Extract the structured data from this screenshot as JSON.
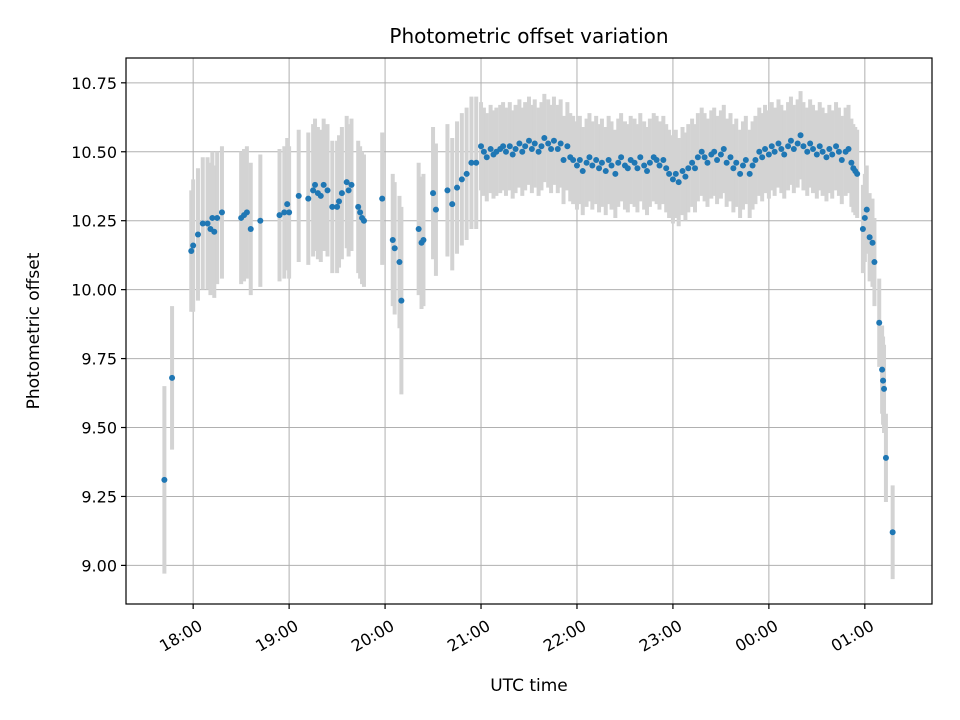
{
  "chart_data": {
    "type": "scatter",
    "title": "Photometric offset variation",
    "xlabel": "UTC time",
    "ylabel": "Photometric offset",
    "grid": true,
    "x_unit": "hours (UTC, beyond 24 = next day)",
    "xlim": [
      17.3,
      25.7
    ],
    "ylim": [
      8.86,
      10.84
    ],
    "x_ticks": [
      {
        "value": 18,
        "label": "18:00"
      },
      {
        "value": 19,
        "label": "19:00"
      },
      {
        "value": 20,
        "label": "20:00"
      },
      {
        "value": 21,
        "label": "21:00"
      },
      {
        "value": 22,
        "label": "22:00"
      },
      {
        "value": 23,
        "label": "23:00"
      },
      {
        "value": 24,
        "label": "00:00"
      },
      {
        "value": 25,
        "label": "01:00"
      }
    ],
    "y_ticks": [
      {
        "value": 9.0,
        "label": "9.00"
      },
      {
        "value": 9.25,
        "label": "9.25"
      },
      {
        "value": 9.5,
        "label": "9.50"
      },
      {
        "value": 9.75,
        "label": "9.75"
      },
      {
        "value": 10.0,
        "label": "10.00"
      },
      {
        "value": 10.25,
        "label": "10.25"
      },
      {
        "value": 10.5,
        "label": "10.50"
      },
      {
        "value": 10.75,
        "label": "10.75"
      }
    ],
    "colors": {
      "points": "#1f77b4",
      "errorbars": "#d3d3d3"
    },
    "series": [
      {
        "points": [
          [
            17.7,
            9.31,
            0.34
          ],
          [
            17.78,
            9.68,
            0.26
          ],
          [
            17.98,
            10.14,
            0.22
          ],
          [
            18.0,
            10.16,
            0.24
          ],
          [
            18.05,
            10.2,
            0.24
          ],
          [
            18.1,
            10.24,
            0.24
          ],
          [
            18.15,
            10.24,
            0.24
          ],
          [
            18.18,
            10.22,
            0.24
          ],
          [
            18.2,
            10.26,
            0.24
          ],
          [
            18.22,
            10.21,
            0.24
          ],
          [
            18.25,
            10.26,
            0.24
          ],
          [
            18.3,
            10.28,
            0.24
          ],
          [
            18.5,
            10.26,
            0.24
          ],
          [
            18.53,
            10.27,
            0.24
          ],
          [
            18.56,
            10.28,
            0.24
          ],
          [
            18.6,
            10.22,
            0.24
          ],
          [
            18.7,
            10.25,
            0.24
          ],
          [
            18.9,
            10.27,
            0.24
          ],
          [
            18.95,
            10.28,
            0.24
          ],
          [
            18.98,
            10.31,
            0.24
          ],
          [
            19.0,
            10.28,
            0.24
          ],
          [
            19.1,
            10.34,
            0.24
          ],
          [
            19.2,
            10.33,
            0.24
          ],
          [
            19.25,
            10.36,
            0.24
          ],
          [
            19.27,
            10.38,
            0.24
          ],
          [
            19.3,
            10.35,
            0.24
          ],
          [
            19.33,
            10.34,
            0.24
          ],
          [
            19.36,
            10.38,
            0.24
          ],
          [
            19.4,
            10.36,
            0.24
          ],
          [
            19.45,
            10.3,
            0.24
          ],
          [
            19.5,
            10.3,
            0.24
          ],
          [
            19.52,
            10.32,
            0.24
          ],
          [
            19.55,
            10.35,
            0.24
          ],
          [
            19.6,
            10.39,
            0.24
          ],
          [
            19.62,
            10.36,
            0.24
          ],
          [
            19.65,
            10.38,
            0.24
          ],
          [
            19.72,
            10.3,
            0.24
          ],
          [
            19.74,
            10.28,
            0.24
          ],
          [
            19.76,
            10.26,
            0.24
          ],
          [
            19.78,
            10.25,
            0.24
          ],
          [
            19.97,
            10.33,
            0.24
          ],
          [
            20.08,
            10.18,
            0.24
          ],
          [
            20.1,
            10.15,
            0.24
          ],
          [
            20.15,
            10.1,
            0.24
          ],
          [
            20.17,
            9.96,
            0.34
          ],
          [
            20.35,
            10.22,
            0.24
          ],
          [
            20.38,
            10.17,
            0.24
          ],
          [
            20.4,
            10.18,
            0.24
          ],
          [
            20.5,
            10.35,
            0.24
          ],
          [
            20.53,
            10.29,
            0.24
          ],
          [
            20.65,
            10.36,
            0.24
          ],
          [
            20.7,
            10.31,
            0.24
          ],
          [
            20.75,
            10.37,
            0.24
          ],
          [
            20.8,
            10.4,
            0.24
          ],
          [
            20.85,
            10.42,
            0.24
          ],
          [
            20.9,
            10.46,
            0.24
          ],
          [
            20.95,
            10.46,
            0.24
          ],
          [
            21.0,
            10.52,
            0.16
          ],
          [
            21.03,
            10.5,
            0.16
          ],
          [
            21.06,
            10.48,
            0.16
          ],
          [
            21.1,
            10.51,
            0.16
          ],
          [
            21.13,
            10.49,
            0.16
          ],
          [
            21.16,
            10.5,
            0.16
          ],
          [
            21.2,
            10.51,
            0.16
          ],
          [
            21.23,
            10.52,
            0.16
          ],
          [
            21.26,
            10.5,
            0.16
          ],
          [
            21.3,
            10.52,
            0.16
          ],
          [
            21.33,
            10.49,
            0.16
          ],
          [
            21.36,
            10.51,
            0.16
          ],
          [
            21.4,
            10.53,
            0.16
          ],
          [
            21.43,
            10.5,
            0.16
          ],
          [
            21.46,
            10.52,
            0.16
          ],
          [
            21.5,
            10.54,
            0.16
          ],
          [
            21.53,
            10.51,
            0.16
          ],
          [
            21.56,
            10.53,
            0.16
          ],
          [
            21.6,
            10.5,
            0.16
          ],
          [
            21.63,
            10.52,
            0.16
          ],
          [
            21.66,
            10.55,
            0.16
          ],
          [
            21.7,
            10.53,
            0.16
          ],
          [
            21.73,
            10.51,
            0.16
          ],
          [
            21.76,
            10.54,
            0.16
          ],
          [
            21.8,
            10.51,
            0.16
          ],
          [
            21.83,
            10.53,
            0.16
          ],
          [
            21.86,
            10.47,
            0.16
          ],
          [
            21.9,
            10.52,
            0.16
          ],
          [
            21.93,
            10.48,
            0.16
          ],
          [
            21.96,
            10.47,
            0.16
          ],
          [
            22.0,
            10.45,
            0.16
          ],
          [
            22.03,
            10.47,
            0.16
          ],
          [
            22.06,
            10.43,
            0.16
          ],
          [
            22.1,
            10.46,
            0.16
          ],
          [
            22.13,
            10.48,
            0.16
          ],
          [
            22.16,
            10.45,
            0.16
          ],
          [
            22.2,
            10.47,
            0.16
          ],
          [
            22.23,
            10.44,
            0.16
          ],
          [
            22.26,
            10.46,
            0.16
          ],
          [
            22.3,
            10.43,
            0.16
          ],
          [
            22.33,
            10.47,
            0.16
          ],
          [
            22.36,
            10.45,
            0.16
          ],
          [
            22.4,
            10.42,
            0.16
          ],
          [
            22.43,
            10.46,
            0.16
          ],
          [
            22.46,
            10.48,
            0.16
          ],
          [
            22.5,
            10.45,
            0.16
          ],
          [
            22.53,
            10.44,
            0.16
          ],
          [
            22.56,
            10.47,
            0.16
          ],
          [
            22.6,
            10.46,
            0.16
          ],
          [
            22.63,
            10.44,
            0.16
          ],
          [
            22.66,
            10.48,
            0.16
          ],
          [
            22.7,
            10.45,
            0.16
          ],
          [
            22.73,
            10.43,
            0.16
          ],
          [
            22.76,
            10.46,
            0.16
          ],
          [
            22.8,
            10.48,
            0.16
          ],
          [
            22.83,
            10.47,
            0.16
          ],
          [
            22.86,
            10.45,
            0.16
          ],
          [
            22.9,
            10.47,
            0.16
          ],
          [
            22.93,
            10.44,
            0.16
          ],
          [
            22.96,
            10.42,
            0.16
          ],
          [
            23.0,
            10.4,
            0.16
          ],
          [
            23.03,
            10.42,
            0.16
          ],
          [
            23.06,
            10.39,
            0.16
          ],
          [
            23.1,
            10.43,
            0.16
          ],
          [
            23.13,
            10.41,
            0.16
          ],
          [
            23.16,
            10.44,
            0.16
          ],
          [
            23.2,
            10.46,
            0.16
          ],
          [
            23.23,
            10.44,
            0.16
          ],
          [
            23.26,
            10.48,
            0.16
          ],
          [
            23.3,
            10.5,
            0.16
          ],
          [
            23.33,
            10.48,
            0.16
          ],
          [
            23.36,
            10.46,
            0.16
          ],
          [
            23.4,
            10.49,
            0.16
          ],
          [
            23.43,
            10.5,
            0.16
          ],
          [
            23.46,
            10.47,
            0.16
          ],
          [
            23.5,
            10.49,
            0.16
          ],
          [
            23.53,
            10.51,
            0.16
          ],
          [
            23.56,
            10.46,
            0.16
          ],
          [
            23.6,
            10.48,
            0.16
          ],
          [
            23.63,
            10.44,
            0.16
          ],
          [
            23.66,
            10.46,
            0.16
          ],
          [
            23.7,
            10.42,
            0.16
          ],
          [
            23.73,
            10.45,
            0.16
          ],
          [
            23.76,
            10.47,
            0.16
          ],
          [
            23.8,
            10.42,
            0.16
          ],
          [
            23.83,
            10.45,
            0.16
          ],
          [
            23.86,
            10.47,
            0.16
          ],
          [
            23.9,
            10.5,
            0.16
          ],
          [
            23.93,
            10.48,
            0.16
          ],
          [
            23.96,
            10.51,
            0.16
          ],
          [
            24.0,
            10.49,
            0.16
          ],
          [
            24.03,
            10.52,
            0.16
          ],
          [
            24.06,
            10.5,
            0.16
          ],
          [
            24.1,
            10.53,
            0.16
          ],
          [
            24.13,
            10.51,
            0.16
          ],
          [
            24.16,
            10.49,
            0.16
          ],
          [
            24.2,
            10.52,
            0.16
          ],
          [
            24.23,
            10.54,
            0.16
          ],
          [
            24.26,
            10.51,
            0.16
          ],
          [
            24.3,
            10.53,
            0.16
          ],
          [
            24.33,
            10.56,
            0.16
          ],
          [
            24.36,
            10.52,
            0.16
          ],
          [
            24.4,
            10.5,
            0.16
          ],
          [
            24.43,
            10.53,
            0.16
          ],
          [
            24.46,
            10.51,
            0.16
          ],
          [
            24.5,
            10.49,
            0.16
          ],
          [
            24.53,
            10.52,
            0.16
          ],
          [
            24.56,
            10.5,
            0.16
          ],
          [
            24.6,
            10.48,
            0.16
          ],
          [
            24.63,
            10.51,
            0.16
          ],
          [
            24.66,
            10.49,
            0.16
          ],
          [
            24.7,
            10.52,
            0.16
          ],
          [
            24.73,
            10.5,
            0.16
          ],
          [
            24.76,
            10.47,
            0.16
          ],
          [
            24.8,
            10.5,
            0.16
          ],
          [
            24.83,
            10.51,
            0.16
          ],
          [
            24.86,
            10.46,
            0.16
          ],
          [
            24.88,
            10.44,
            0.16
          ],
          [
            24.9,
            10.43,
            0.16
          ],
          [
            24.92,
            10.42,
            0.16
          ],
          [
            24.98,
            10.22,
            0.16
          ],
          [
            25.0,
            10.26,
            0.16
          ],
          [
            25.02,
            10.29,
            0.16
          ],
          [
            25.05,
            10.19,
            0.16
          ],
          [
            25.08,
            10.17,
            0.16
          ],
          [
            25.1,
            10.1,
            0.16
          ],
          [
            25.15,
            9.88,
            0.16
          ],
          [
            25.18,
            9.71,
            0.16
          ],
          [
            25.19,
            9.67,
            0.16
          ],
          [
            25.2,
            9.64,
            0.16
          ],
          [
            25.22,
            9.39,
            0.16
          ],
          [
            25.29,
            9.12,
            0.17
          ]
        ]
      }
    ]
  }
}
